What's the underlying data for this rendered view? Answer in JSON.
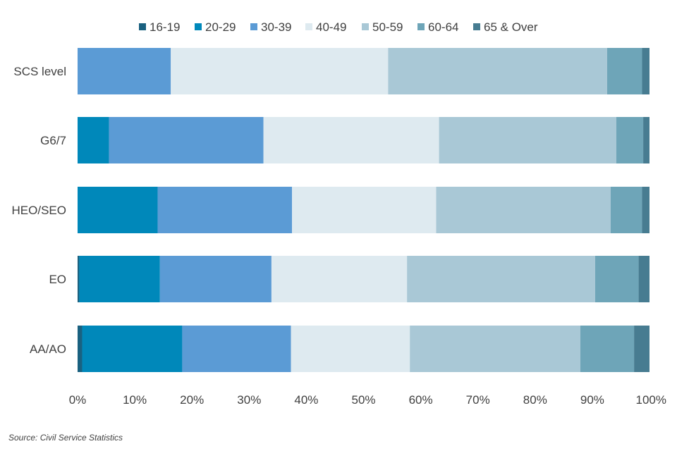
{
  "chart_data": {
    "type": "bar",
    "orientation": "horizontal",
    "stacked": "percent",
    "categories": [
      "SCS level",
      "G6/7",
      "HEO/SEO",
      "EO",
      "AA/AO"
    ],
    "series": [
      {
        "name": "16-19",
        "color": "#1a6180",
        "values": [
          0.0,
          0.0,
          0.0,
          0.3,
          0.8
        ]
      },
      {
        "name": "20-29",
        "color": "#0088ba",
        "values": [
          0.0,
          5.5,
          14.0,
          14.1,
          17.5
        ]
      },
      {
        "name": "30-39",
        "color": "#5b9bd5",
        "values": [
          16.3,
          27.0,
          23.5,
          19.5,
          19.0
        ]
      },
      {
        "name": "40-49",
        "color": "#deeaf0",
        "values": [
          38.0,
          30.7,
          25.2,
          23.7,
          20.8
        ]
      },
      {
        "name": "50-59",
        "color": "#a9c8d6",
        "values": [
          38.3,
          31.0,
          30.5,
          32.9,
          29.8
        ]
      },
      {
        "name": "60-64",
        "color": "#6ea5b8",
        "values": [
          6.1,
          4.7,
          5.5,
          7.6,
          9.4
        ]
      },
      {
        "name": "65 & Over",
        "color": "#477c91",
        "values": [
          1.3,
          1.1,
          1.3,
          1.9,
          2.7
        ]
      }
    ],
    "xlim": [
      0,
      100
    ],
    "xticks": [
      "0%",
      "10%",
      "20%",
      "30%",
      "40%",
      "50%",
      "60%",
      "70%",
      "80%",
      "90%",
      "100%"
    ],
    "legend_position": "top",
    "grid": false,
    "source": "Source: Civil Service Statistics"
  }
}
